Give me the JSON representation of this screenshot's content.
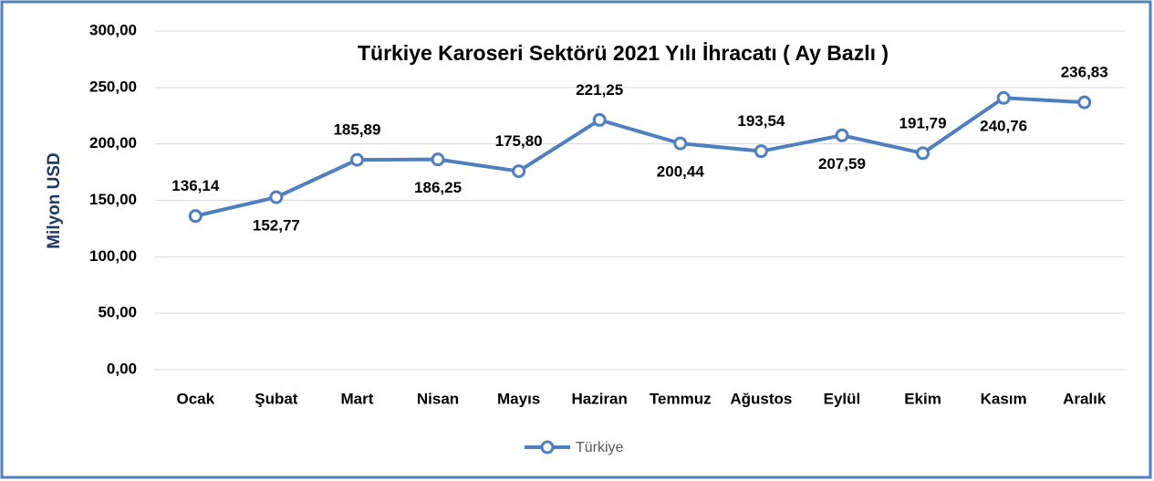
{
  "chart_data": {
    "type": "line",
    "title": "Türkiye Karoseri Sektörü 2021 Yılı İhracatı ( Ay Bazlı )",
    "y_label": "Milyon USD",
    "categories": [
      "Ocak",
      "Şubat",
      "Mart",
      "Nisan",
      "Mayıs",
      "Haziran",
      "Temmuz",
      "Ağustos",
      "Eylül",
      "Ekim",
      "Kasım",
      "Aralık"
    ],
    "series": [
      {
        "name": "Türkiye",
        "color": "#4f7fbf",
        "values": [
          136.14,
          152.77,
          185.89,
          186.25,
          175.8,
          221.25,
          200.44,
          193.54,
          207.59,
          191.79,
          240.76,
          236.83
        ],
        "value_labels": [
          "136,14",
          "152,77",
          "185,89",
          "186,25",
          "175,80",
          "221,25",
          "200,44",
          "193,54",
          "207,59",
          "191,79",
          "240,76",
          "236,83"
        ]
      }
    ],
    "ylim": [
      0,
      300
    ],
    "yticks": [
      {
        "value": 0,
        "label": "0,00"
      },
      {
        "value": 50,
        "label": "50,00"
      },
      {
        "value": 100,
        "label": "100,00"
      },
      {
        "value": 150,
        "label": "150,00"
      },
      {
        "value": 200,
        "label": "200,00"
      },
      {
        "value": 250,
        "label": "250,00"
      },
      {
        "value": 300,
        "label": "300,00"
      }
    ],
    "grid": true,
    "legend": "bottom"
  }
}
